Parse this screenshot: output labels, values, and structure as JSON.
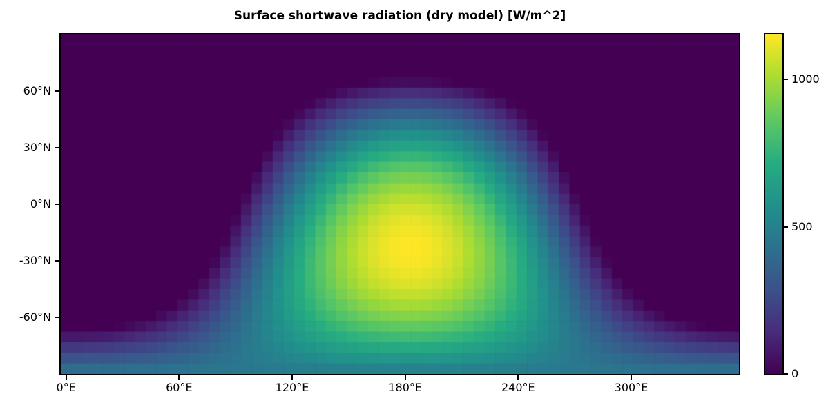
{
  "chart_data": {
    "type": "heatmap",
    "title": "Surface shortwave radiation (dry model) [W/m^2]",
    "value_units": "W/m^2",
    "colormap": {
      "name": "viridis",
      "stops": [
        "#440154",
        "#472d7b",
        "#3b528b",
        "#2c728e",
        "#21918c",
        "#27ad81",
        "#5ec962",
        "#aadc32",
        "#fde725"
      ]
    },
    "x_axis": {
      "kind": "longitude",
      "range_deg": [
        -2.8125,
        357.1875
      ],
      "ticks": [
        0,
        60,
        120,
        180,
        240,
        300
      ],
      "tick_labels": [
        "0°E",
        "60°E",
        "120°E",
        "180°E",
        "240°E",
        "300°E"
      ]
    },
    "y_axis": {
      "kind": "latitude",
      "range_deg": [
        -90,
        90
      ],
      "ticks": [
        60,
        30,
        0,
        -30,
        -60
      ],
      "tick_labels": [
        "60°N",
        "30°N",
        "0°N",
        "-30°N",
        "-60°N"
      ]
    },
    "grid": {
      "n_lon": 64,
      "n_lat": 32,
      "cell_deg": 5.625
    },
    "field_model": {
      "description": "SW = S0 * max(0, sin(lat)*sin(subsolar_lat) + cos(lat)*cos(subsolar_lat)*cos(lon - subsolar_lon)); evaluated at cell centers",
      "S0_w_m2": 1155,
      "subsolar_lon_deg": 182.8125,
      "subsolar_lat_deg": -23.44
    },
    "colorbar": {
      "vmin": 0,
      "vmax_approx": 1153,
      "ticks": [
        0,
        500,
        1000
      ],
      "tick_labels": [
        "0",
        "500",
        "1000"
      ],
      "min_color": "#440154",
      "max_color": "#fde725",
      "mid_500_color": "#26838e"
    },
    "sample_lats_deg": [
      -80,
      -60,
      -40,
      -20,
      0,
      20,
      40,
      60,
      80
    ],
    "sample_lons_deg": [
      0,
      30,
      60,
      90,
      120,
      150,
      180,
      210,
      240,
      270,
      300,
      330
    ],
    "sample_values_w_m2": [
      [
        269,
        289,
        353,
        443,
        537,
        607,
        636,
        616,
        552,
        461,
        368,
        298
      ],
      [
        0,
        0,
        111,
        372,
        640,
        843,
        927,
        869,
        685,
        424,
        156,
        0
      ],
      [
        0,
        0,
        0,
        255,
        666,
        978,
        1106,
        1017,
        735,
        335,
        0,
        0
      ],
      [
        0,
        0,
        0,
        108,
        612,
        994,
        1152,
        1043,
        697,
        206,
        0,
        0
      ],
      [
        0,
        0,
        0,
        0,
        484,
        891,
        1058,
        942,
        574,
        52,
        0,
        0
      ],
      [
        0,
        0,
        0,
        0,
        298,
        680,
        838,
        728,
        382,
        0,
        0,
        0
      ],
      [
        0,
        0,
        0,
        0,
        76,
        387,
        516,
        427,
        144,
        0,
        0,
        0
      ],
      [
        0,
        0,
        0,
        0,
        0,
        47,
        131,
        73,
        0,
        0,
        0,
        0
      ],
      [
        0,
        0,
        0,
        0,
        0,
        0,
        0,
        0,
        0,
        0,
        0,
        0
      ]
    ]
  }
}
